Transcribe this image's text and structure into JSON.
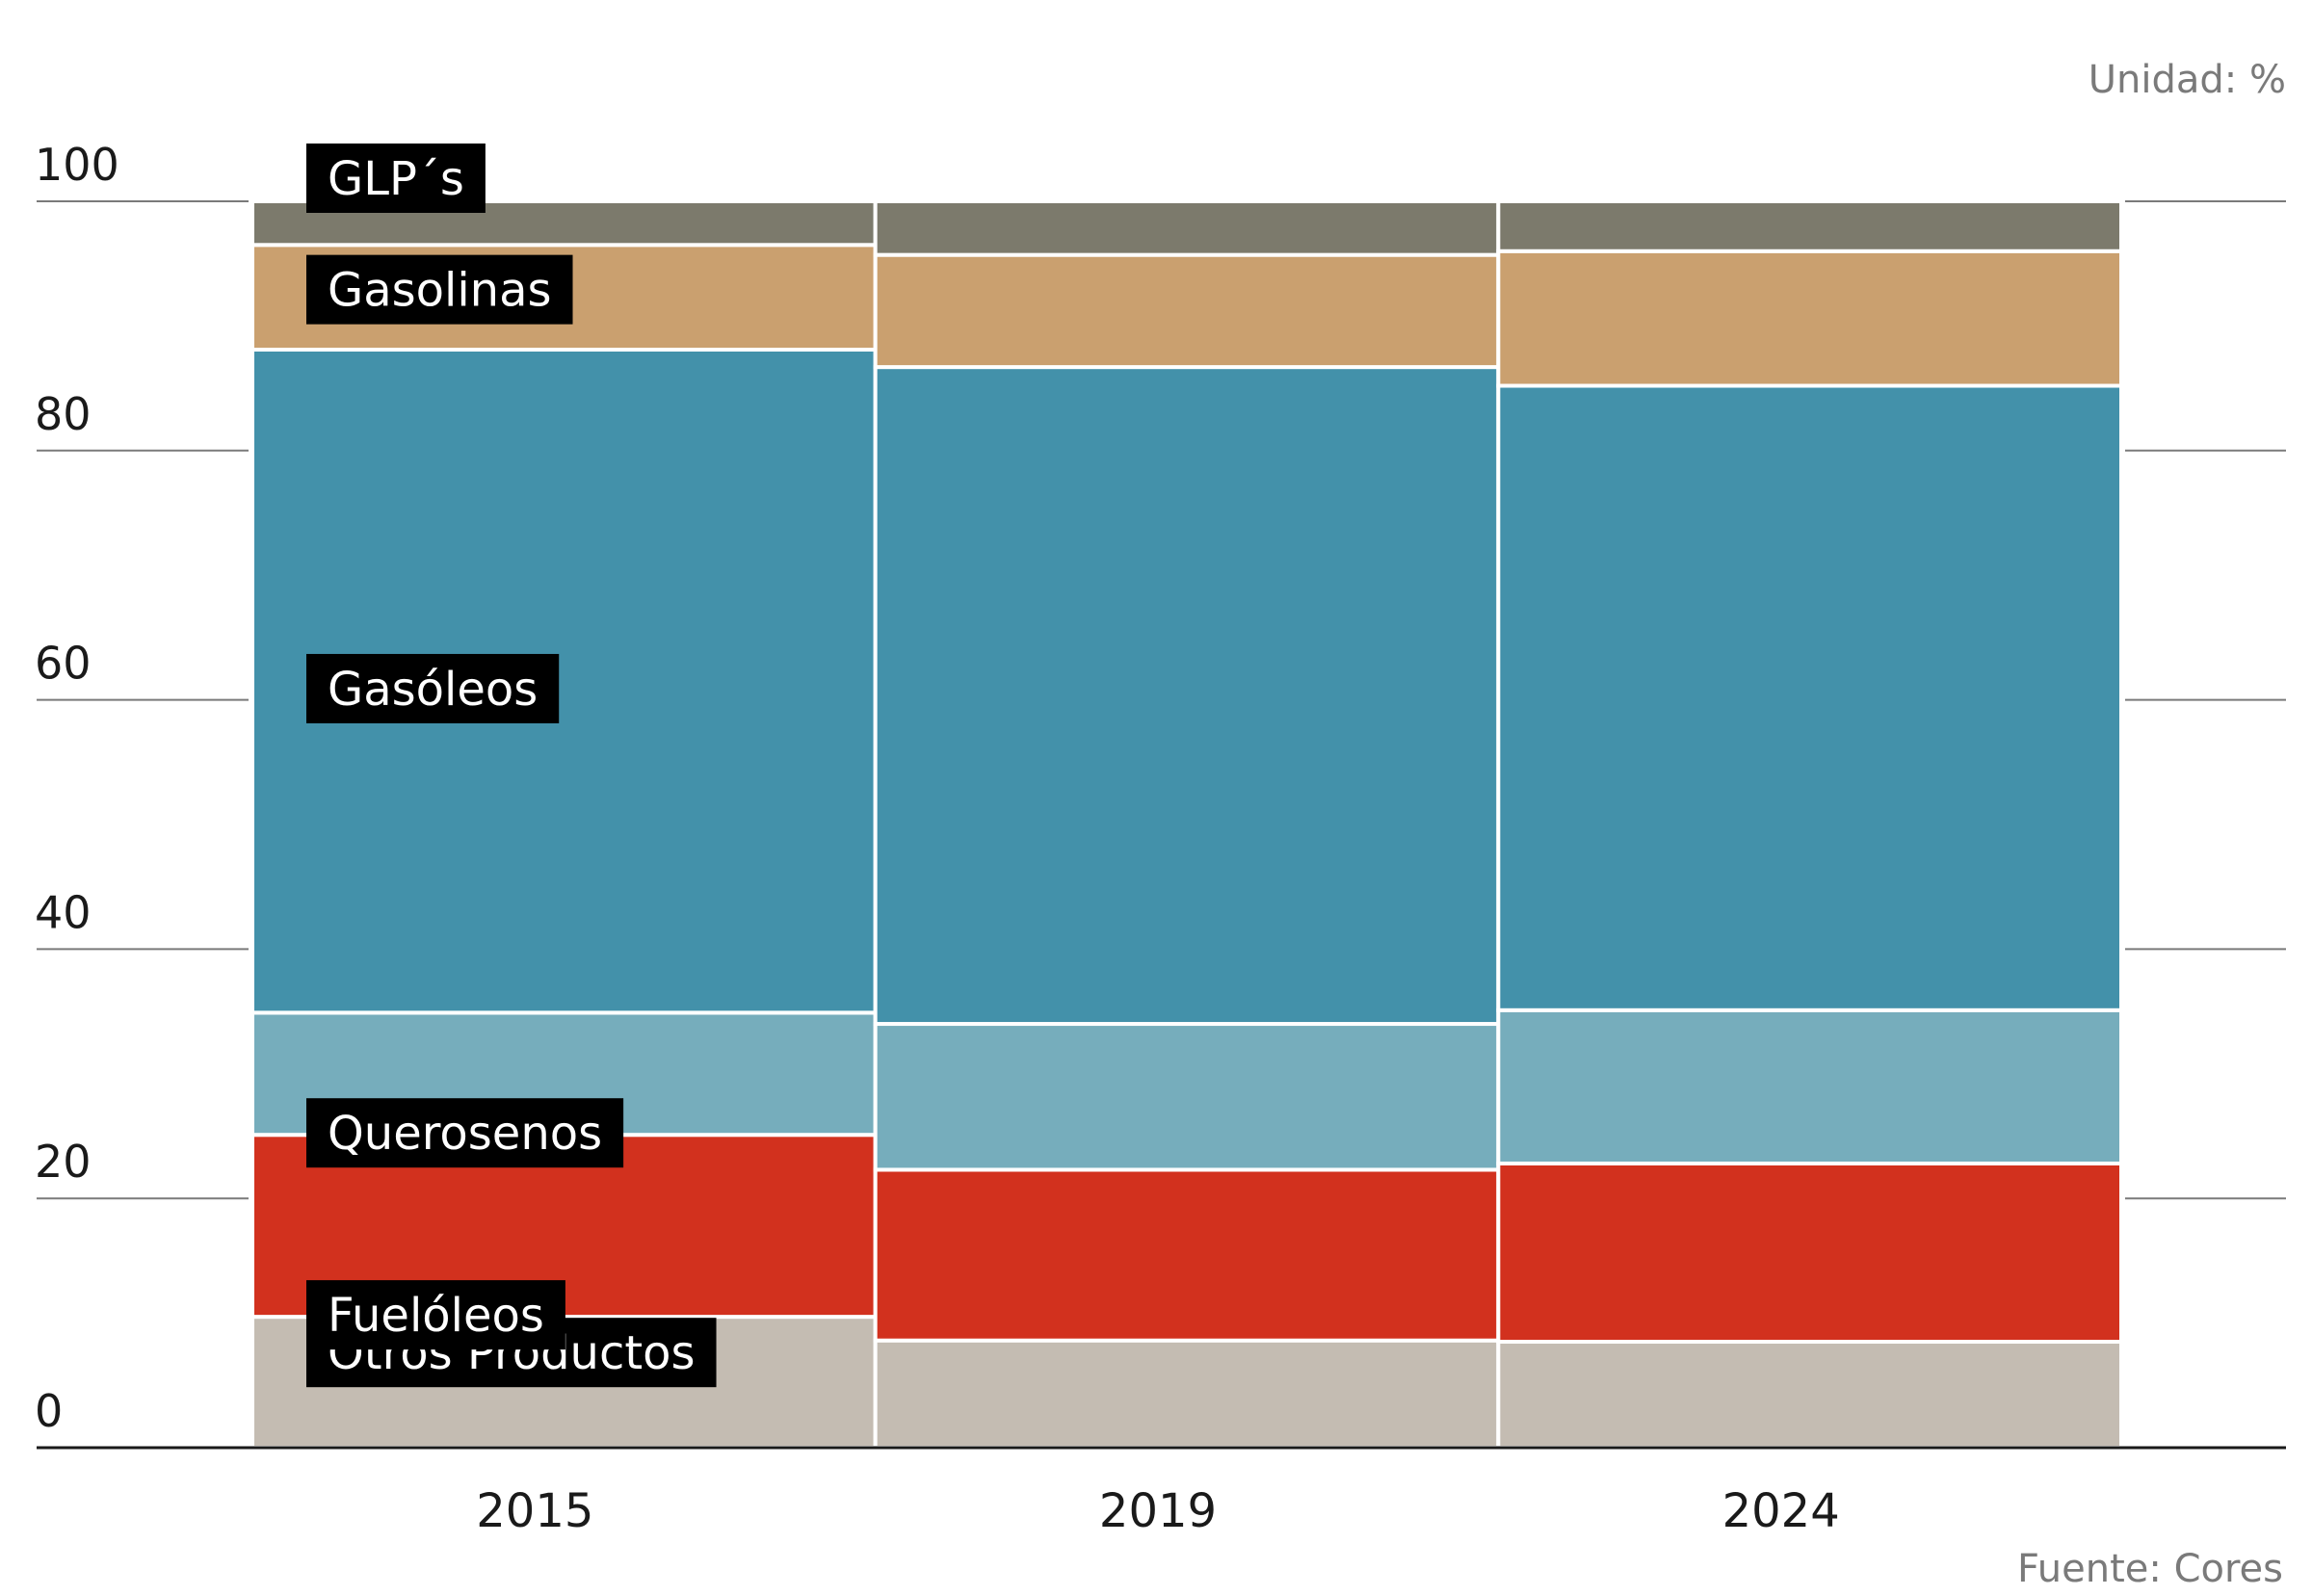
{
  "unit_note": "Unidad: %",
  "source_note": "Fuente: Cores",
  "chart_data": {
    "type": "bar",
    "stacked": true,
    "categories": [
      "2015",
      "2019",
      "2024"
    ],
    "ylim": [
      0,
      100
    ],
    "yticks": [
      0,
      20,
      40,
      60,
      80,
      100
    ],
    "ytick_labels": [
      "0",
      "20",
      "40",
      "60",
      "80",
      "100"
    ],
    "legend_placement": "inline labels on first column",
    "series": [
      {
        "name": "Otros Productos",
        "color": "#c4bcb2",
        "values": [
          10.5,
          8.6,
          8.5
        ]
      },
      {
        "name": "Fuelóleos",
        "color": "#d2311e",
        "values": [
          14.6,
          13.7,
          14.3
        ]
      },
      {
        "name": "Querosenos",
        "color": "#76adbc",
        "values": [
          9.8,
          11.7,
          12.3
        ]
      },
      {
        "name": "Gasóleos",
        "color": "#4391aa",
        "values": [
          53.2,
          52.7,
          50.1
        ]
      },
      {
        "name": "Gasolinas",
        "color": "#caa06f",
        "values": [
          8.4,
          9.0,
          10.8
        ]
      },
      {
        "name": "GLP´s",
        "color": "#7c7a6c",
        "values": [
          3.5,
          4.3,
          4.0
        ]
      }
    ]
  }
}
